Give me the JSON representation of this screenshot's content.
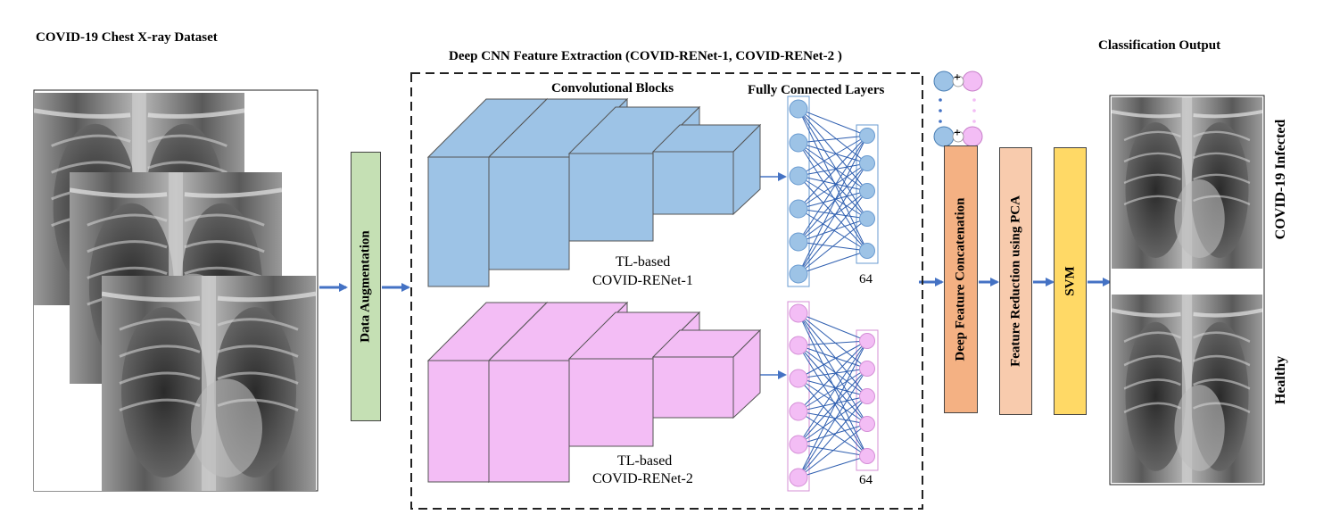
{
  "dataset_title": "COVID-19 Chest X-ray Dataset",
  "extraction_title": "Deep CNN Feature Extraction (COVID-RENet-1, COVID-RENet-2 )",
  "conv_blocks_label": "Convolutional  Blocks",
  "fc_layers_label": "Fully Connected Layers",
  "model1": {
    "line1": "TL-based",
    "line2": "COVID-RENet-1",
    "fc_size": "64"
  },
  "model2": {
    "line1": "TL-based",
    "line2": "COVID-RENet-2",
    "fc_size": "64"
  },
  "plus_sign": "+",
  "stages": {
    "augmentation": "Data Augmentation",
    "concatenation": "Deep Feature Concatenation",
    "pca": "Feature Reduction using PCA",
    "svm": "SVM"
  },
  "output_title": "Classification Output",
  "classes": {
    "infected": "COVID-19 Infected",
    "healthy": "Healthy"
  },
  "colors": {
    "blue": "#9dc3e6",
    "pink": "#f3bdf5",
    "augmentation": "#c5e0b4",
    "concatenation": "#f4b183",
    "pca": "#f8cbad",
    "svm": "#ffd966",
    "arrow": "#4472c4"
  }
}
